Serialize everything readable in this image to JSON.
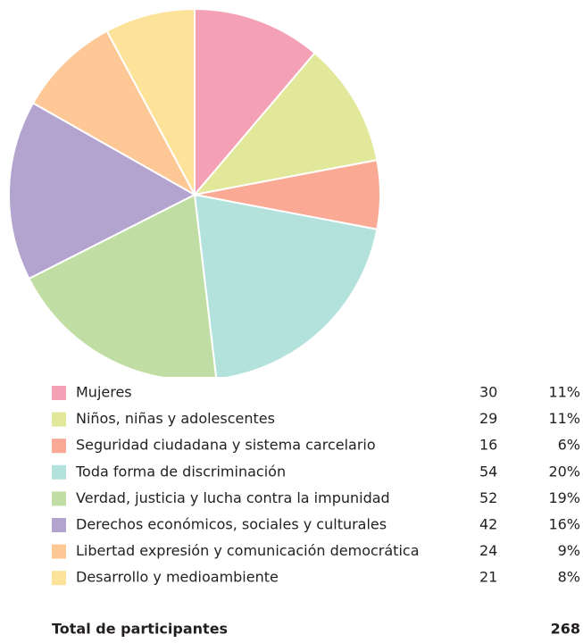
{
  "chart_data": {
    "type": "pie",
    "categories": [
      "Mujeres",
      "Niños, niñas y adolescentes",
      "Seguridad ciudadana y sistema carcelario",
      "Toda forma de discriminación",
      "Verdad, justicia y lucha contra la impunidad",
      "Derechos económicos, sociales y culturales",
      "Libertad expresión y comunicación democrática",
      "Desarrollo y medioambiente"
    ],
    "values": [
      30,
      29,
      16,
      54,
      52,
      42,
      24,
      21
    ],
    "percentages": [
      "11%",
      "11%",
      "6%",
      "20%",
      "19%",
      "16%",
      "9%",
      "8%"
    ],
    "colors": [
      "#f4a0b5",
      "#e2e89a",
      "#f9a994",
      "#b3e2dc",
      "#c0dea3",
      "#b3a3cf",
      "#fdc796",
      "#fde39a"
    ],
    "total_label": "Total de participantes",
    "total": 268
  }
}
